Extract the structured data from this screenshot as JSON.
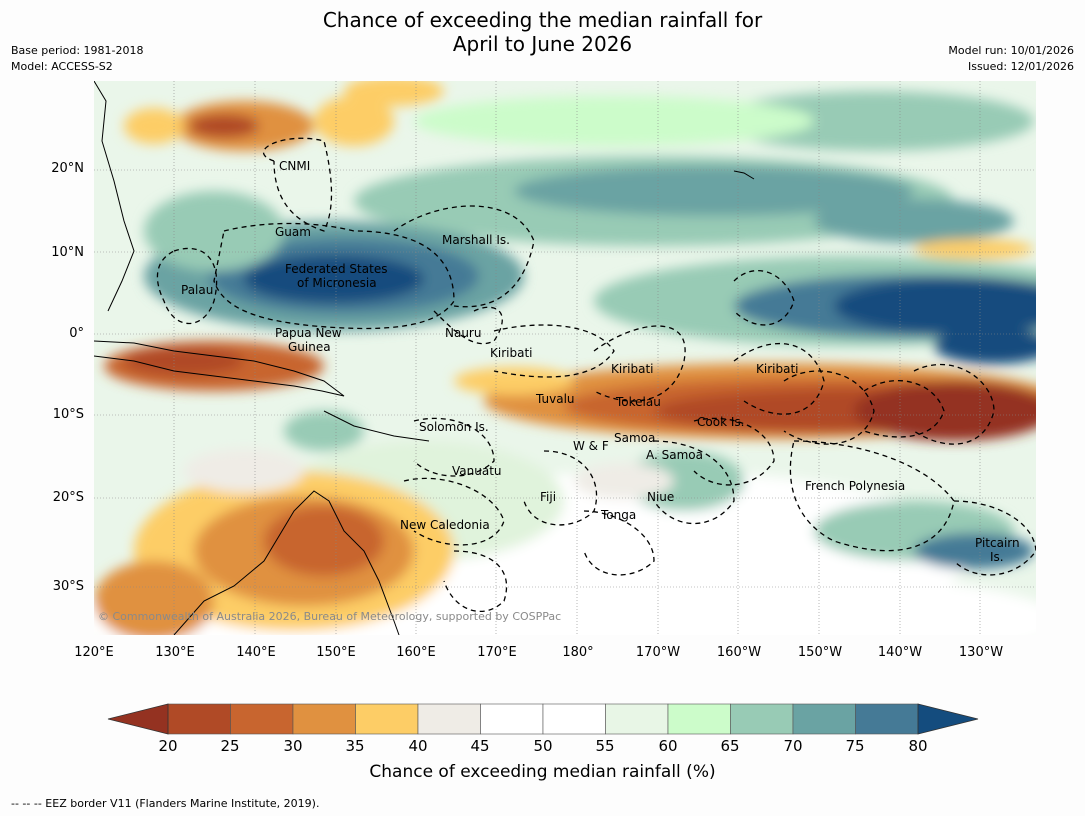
{
  "title": {
    "line1": "Chance of exceeding the median rainfall for",
    "line2": "April to June 2026"
  },
  "meta": {
    "base_period": "Base period: 1981-2018",
    "model": "Model: ACCESS-S2",
    "model_run": "Model run: 10/01/2026",
    "issued": "Issued: 12/01/2026"
  },
  "lat_labels": [
    "20°N",
    "10°N",
    "0°",
    "10°S",
    "20°S",
    "30°S"
  ],
  "lon_labels": [
    "120°E",
    "130°E",
    "140°E",
    "150°E",
    "160°E",
    "170°E",
    "180°",
    "170°W",
    "160°W",
    "150°W",
    "140°W",
    "130°W"
  ],
  "regions": {
    "cnmi": "CNMI",
    "guam": "Guam",
    "marshall": "Marshall Is.",
    "fsm1": "Federated States",
    "fsm2": "of Micronesia",
    "palau": "Palau",
    "png1": "Papua New",
    "png2": "Guinea",
    "nauru": "Nauru",
    "kiribati_w": "Kiribati",
    "kiribati_c": "Kiribati",
    "kiribati_e": "Kiribati",
    "tuvalu": "Tuvalu",
    "tokelau": "Tokelau",
    "cook": "Cook Is.",
    "solomon": "Solomon Is.",
    "samoa": "Samoa",
    "wf": "W & F",
    "asamoa": "A. Samoa",
    "vanuatu": "Vanuatu",
    "fiji": "Fiji",
    "niue": "Niue",
    "fp": "French Polynesia",
    "tonga": "Tonga",
    "nc": "New Caledonia",
    "pitcairn1": "Pitcairn",
    "pitcairn2": "Is."
  },
  "copyright": "© Commonwealth of Australia 2026, Bureau of Meteorology, supported by COSPPac",
  "colorbar": {
    "title": "Chance of exceeding median rainfall (%)",
    "ticks": [
      "20",
      "25",
      "30",
      "35",
      "40",
      "45",
      "50",
      "55",
      "60",
      "65",
      "70",
      "75",
      "80"
    ],
    "colors": [
      "#b04a26",
      "#c8652f",
      "#e09140",
      "#fdcd66",
      "#efece6",
      "#ffffff",
      "#ffffff",
      "#e8f6e6",
      "#ccfcca",
      "#98cbb5",
      "#6aa3a3",
      "#457a96"
    ],
    "under_color": "#943221",
    "over_color": "#144c7e"
  },
  "footnote": "-- -- -- EEZ border V11 (Flanders Marine Institute, 2019)."
}
